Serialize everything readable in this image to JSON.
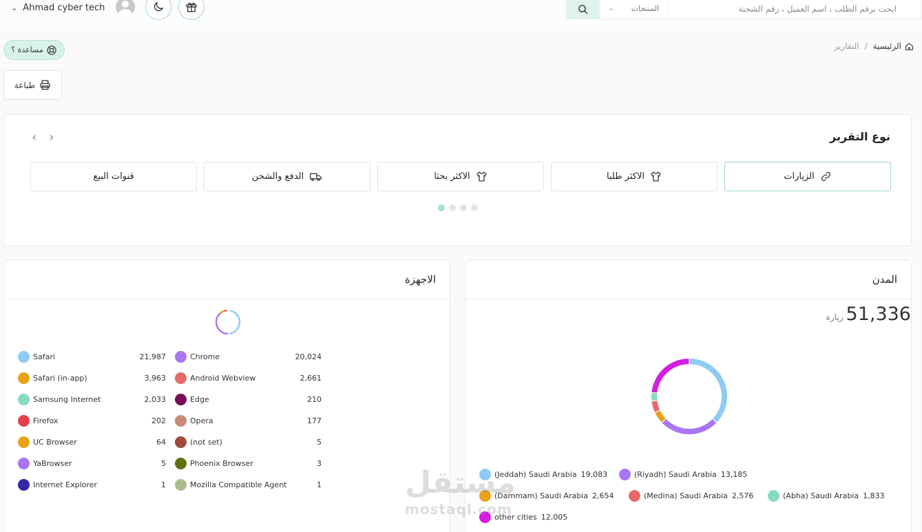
{
  "topbar": {
    "user_name": "Ahmad cyber tech",
    "search_placeholder": "ابحث برقم الطلب ، اسم العميل ، رقم الشحنة",
    "products_select": "المنتجات",
    "icons": [
      "chevron-down-icon",
      "avatar",
      "moon-icon",
      "gift-icon",
      "search-icon"
    ]
  },
  "help_label": "مساعدة ؟",
  "breadcrumb": {
    "home": "الرئيسية",
    "separator": "/",
    "current": "التقارير"
  },
  "print_label": "طباعة",
  "report_type": {
    "title": "نوع التقرير",
    "tabs": [
      {
        "label": "الزيارات",
        "icon": "link-icon",
        "active": true
      },
      {
        "label": "الاكثر طلبا",
        "icon": "shirt-icon",
        "active": false
      },
      {
        "label": "الاكثر بحثا",
        "icon": "shirt-icon",
        "active": false
      },
      {
        "label": "الدفع والشحن",
        "icon": "truck-icon",
        "active": false
      },
      {
        "label": "قنوات البيع",
        "icon": "",
        "active": false
      }
    ],
    "pager_dots": 4,
    "active_dot": 0
  },
  "devices": {
    "title": "الاجهزة",
    "items": [
      {
        "name": "Safari",
        "value": "21,987",
        "color": "#8ecbf5"
      },
      {
        "name": "Chrome",
        "value": "20,024",
        "color": "#a975f0"
      },
      {
        "name": "Safari (in-app)",
        "value": "3,963",
        "color": "#e8a319"
      },
      {
        "name": "Android Webview",
        "value": "2,661",
        "color": "#e66a6a"
      },
      {
        "name": "Samsung Internet",
        "value": "2,033",
        "color": "#86dcc0"
      },
      {
        "name": "Edge",
        "value": "210",
        "color": "#7a0d55"
      },
      {
        "name": "Firefox",
        "value": "202",
        "color": "#e2414b"
      },
      {
        "name": "Opera",
        "value": "177",
        "color": "#c98a76"
      },
      {
        "name": "UC Browser",
        "value": "64",
        "color": "#e8a319"
      },
      {
        "name": "(not set)",
        "value": "5",
        "color": "#a04a3a"
      },
      {
        "name": "YaBrowser",
        "value": "5",
        "color": "#a975f0"
      },
      {
        "name": "Phoenix Browser",
        "value": "3",
        "color": "#5e7211"
      },
      {
        "name": "Internet Explorer",
        "value": "1",
        "color": "#3726a9"
      },
      {
        "name": "Mozilla Compatible Agent",
        "value": "1",
        "color": "#a9bc8f"
      }
    ]
  },
  "cities": {
    "title": "المدن",
    "total": "51,336",
    "total_unit": "زيارة",
    "items": [
      {
        "name": "(Jeddah) Saudi Arabia",
        "value": "19,083",
        "color": "#8ecbf5"
      },
      {
        "name": "(Riyadh) Saudi Arabia",
        "value": "13,185",
        "color": "#a975f0"
      },
      {
        "name": "(Dammam) Saudi Arabia",
        "value": "2,654",
        "color": "#e8a319"
      },
      {
        "name": "(Medina) Saudi Arabia",
        "value": "2,576",
        "color": "#e66a6a"
      },
      {
        "name": "(Abha) Saudi Arabia",
        "value": "1,833",
        "color": "#86dcc0"
      },
      {
        "name": "other cities",
        "value": "12,005",
        "color": "#d21fe0"
      }
    ]
  },
  "chart_data": {
    "type": "pie",
    "categories": [
      "(Jeddah) Saudi Arabia",
      "(Riyadh) Saudi Arabia",
      "(Dammam) Saudi Arabia",
      "(Medina) Saudi Arabia",
      "(Abha) Saudi Arabia",
      "other cities"
    ],
    "values": [
      19083,
      13185,
      2654,
      2576,
      1833,
      12005
    ],
    "colors": [
      "#8ecbf5",
      "#a975f0",
      "#e8a319",
      "#e66a6a",
      "#86dcc0",
      "#d21fe0"
    ],
    "legend": "bottom"
  },
  "watermark": {
    "latin": "mostaql.com",
    "arabic": "مستقل"
  }
}
